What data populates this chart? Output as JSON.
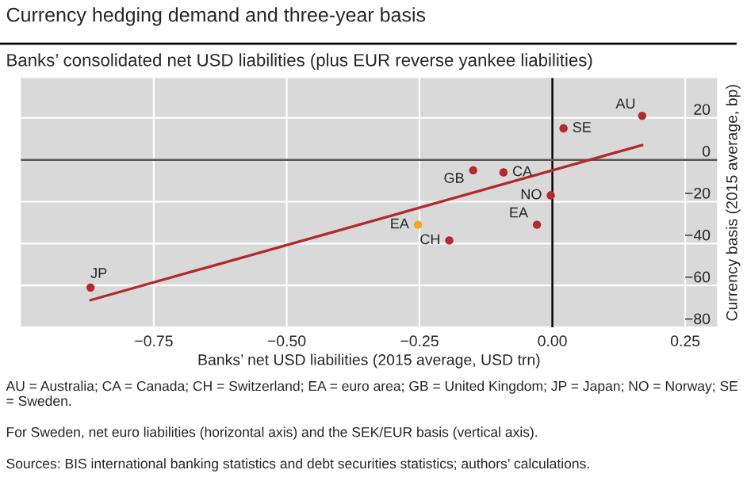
{
  "chart_data": {
    "type": "scatter",
    "title": "Currency hedging demand and three-year basis",
    "subtitle": "Banks’ consolidated net USD liabilities (plus EUR reverse yankee liabilities)",
    "xlabel": "Banks’ net USD liabilities (2015 average, USD trn)",
    "ylabel": "Currency basis (2015 average, bp)",
    "series": [
      {
        "x": [
          0.169,
          0.021,
          -0.149,
          -0.092,
          -0.003,
          -0.029,
          -0.253,
          -0.194,
          -0.869
        ],
        "values": [
          21,
          15,
          -5,
          -6,
          -17,
          -31,
          -31,
          -38.5,
          -61
        ],
        "colors": [
          "#b22a2e",
          "#b22a2e",
          "#b22a2e",
          "#b22a2e",
          "#b22a2e",
          "#b22a2e",
          "#f5a623",
          "#b22a2e",
          "#b22a2e"
        ]
      },
      {
        "type": "line",
        "x": [
          -0.869,
          0.169
        ],
        "values": [
          -67,
          7
        ],
        "color": "#b22a2e"
      }
    ],
    "xlim": [
      -1.0,
      0.31
    ],
    "ylim": [
      -80,
      39
    ],
    "xticks": [
      {
        "value": -0.75,
        "label": "−0.75"
      },
      {
        "value": -0.5,
        "label": "−0.50"
      },
      {
        "value": -0.25,
        "label": "−0.25"
      },
      {
        "value": 0,
        "label": "0.00"
      },
      {
        "value": 0.25,
        "label": "0.25"
      }
    ],
    "yticks": [
      {
        "value": -80,
        "label": "−80"
      },
      {
        "value": -60,
        "label": "−60"
      },
      {
        "value": -40,
        "label": "−40"
      },
      {
        "value": -20,
        "label": "−20"
      },
      0,
      20
    ],
    "grid": true,
    "ref_lines": [
      {
        "axis": "x",
        "value": 0,
        "color": "#000000"
      },
      {
        "axis": "y",
        "value": 0,
        "color": "#555555"
      }
    ],
    "annotations": [
      {
        "text": "AU",
        "x": 0.169,
        "y": 21
      },
      {
        "text": "SE",
        "x": 0.021,
        "y": 15
      },
      {
        "text": "GB",
        "x": -0.149,
        "y": -5
      },
      {
        "text": "CA",
        "x": -0.092,
        "y": -6
      },
      {
        "text": "NO",
        "x": -0.003,
        "y": -17
      },
      {
        "text": "EA",
        "x": -0.029,
        "y": -31
      },
      {
        "text": "EA",
        "x": -0.253,
        "y": -31
      },
      {
        "text": "CH",
        "x": -0.194,
        "y": -38.5
      },
      {
        "text": "JP",
        "x": -0.869,
        "y": -61
      },
      "AU = Australia; CA = Canada; CH = Switzerland; EA = euro area; GB = United Kingdom; JP = Japan; NO = Norway; SE = Sweden.",
      "For Sweden, net euro liabilities (horizontal axis) and the SEK/EUR basis (vertical axis).",
      "Sources: BIS international banking statistics and debt securities statistics; authors’ calculations."
    ]
  }
}
